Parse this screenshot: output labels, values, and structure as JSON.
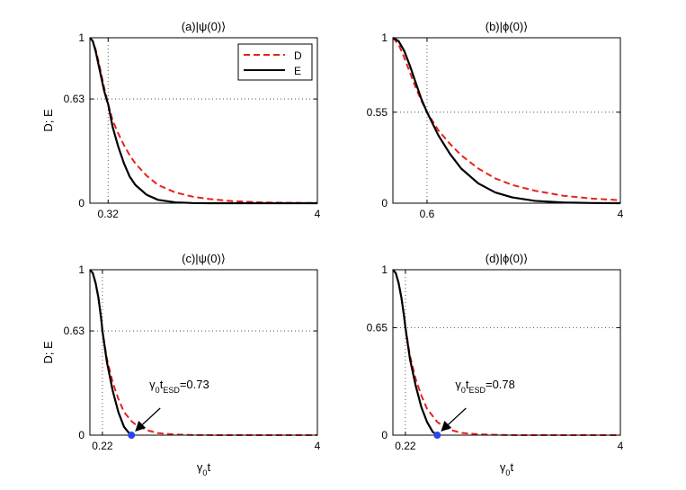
{
  "chart_data": [
    {
      "type": "line",
      "title": "(a)|ψ(0)⟩",
      "xlabel": "",
      "ylabel": "D; E",
      "xlim": [
        0,
        4
      ],
      "ylim": [
        0,
        1
      ],
      "xticks": [
        "0.32",
        "4"
      ],
      "yticks": [
        "0",
        "0.63",
        "1"
      ],
      "grid_x": 0.32,
      "grid_y": 0.63,
      "legend": {
        "position": "top-right",
        "entries": [
          "D",
          "E"
        ]
      },
      "series": [
        {
          "name": "D",
          "style": "dashed",
          "color": "#e8211a",
          "x": [
            0,
            0.05,
            0.1,
            0.15,
            0.2,
            0.25,
            0.3,
            0.32,
            0.4,
            0.5,
            0.6,
            0.7,
            0.8,
            1.0,
            1.2,
            1.5,
            1.8,
            2.1,
            2.5,
            3.0,
            3.5,
            4.0
          ],
          "y": [
            1.0,
            0.98,
            0.93,
            0.86,
            0.78,
            0.7,
            0.63,
            0.6,
            0.5,
            0.42,
            0.35,
            0.29,
            0.24,
            0.165,
            0.11,
            0.065,
            0.04,
            0.025,
            0.013,
            0.005,
            0.002,
            0.001
          ]
        },
        {
          "name": "E",
          "style": "solid",
          "color": "#000000",
          "x": [
            0,
            0.05,
            0.1,
            0.15,
            0.2,
            0.25,
            0.3,
            0.32,
            0.4,
            0.5,
            0.6,
            0.7,
            0.8,
            1.0,
            1.2,
            1.5,
            1.8,
            2.1,
            2.5,
            3.0,
            3.5,
            4.0
          ],
          "y": [
            1.0,
            0.98,
            0.92,
            0.84,
            0.76,
            0.68,
            0.62,
            0.6,
            0.46,
            0.34,
            0.24,
            0.16,
            0.11,
            0.05,
            0.02,
            0.005,
            0.001,
            0.0,
            0.0,
            0.0,
            0.0,
            0.0
          ]
        }
      ]
    },
    {
      "type": "line",
      "title": "(b)|ϕ(0)⟩",
      "xlabel": "",
      "ylabel": "",
      "xlim": [
        0,
        4
      ],
      "ylim": [
        0,
        1
      ],
      "xticks": [
        "0.6",
        "4"
      ],
      "yticks": [
        "0",
        "0.55",
        "1"
      ],
      "grid_x": 0.6,
      "grid_y": 0.55,
      "series": [
        {
          "name": "D",
          "style": "dashed",
          "color": "#e8211a",
          "x": [
            0,
            0.1,
            0.2,
            0.3,
            0.4,
            0.5,
            0.6,
            0.8,
            1.0,
            1.2,
            1.5,
            1.8,
            2.1,
            2.5,
            3.0,
            3.5,
            4.0
          ],
          "y": [
            1.0,
            0.96,
            0.88,
            0.79,
            0.7,
            0.62,
            0.55,
            0.44,
            0.36,
            0.29,
            0.21,
            0.15,
            0.11,
            0.075,
            0.045,
            0.028,
            0.018
          ]
        },
        {
          "name": "E",
          "style": "solid",
          "color": "#000000",
          "x": [
            0,
            0.1,
            0.2,
            0.3,
            0.4,
            0.5,
            0.6,
            0.8,
            1.0,
            1.2,
            1.5,
            1.8,
            2.1,
            2.5,
            3.0,
            3.5,
            4.0
          ],
          "y": [
            1.0,
            0.98,
            0.92,
            0.83,
            0.73,
            0.63,
            0.55,
            0.41,
            0.3,
            0.21,
            0.12,
            0.065,
            0.035,
            0.014,
            0.004,
            0.001,
            0.0
          ]
        }
      ]
    },
    {
      "type": "line",
      "title": "(c)|ψ(0)⟩",
      "xlabel": "γ0t",
      "ylabel": "D; E",
      "xlim": [
        0,
        4
      ],
      "ylim": [
        0,
        1
      ],
      "xticks": [
        "0.22",
        "4"
      ],
      "yticks": [
        "0",
        "0.63",
        "1"
      ],
      "grid_x": 0.22,
      "grid_y": 0.63,
      "esd_point": {
        "x": 0.73,
        "y": 0
      },
      "annotation": {
        "label": "γ0tESD",
        "value": "=0.73"
      },
      "series": [
        {
          "name": "D",
          "style": "dashed",
          "color": "#e8211a",
          "x": [
            0,
            0.05,
            0.1,
            0.15,
            0.2,
            0.22,
            0.3,
            0.4,
            0.5,
            0.6,
            0.73,
            0.8,
            1.0,
            1.2,
            1.5,
            1.8,
            2.2,
            3.0,
            4.0
          ],
          "y": [
            1.0,
            0.98,
            0.92,
            0.83,
            0.7,
            0.63,
            0.46,
            0.32,
            0.22,
            0.14,
            0.085,
            0.065,
            0.03,
            0.012,
            0.004,
            0.001,
            0.0,
            0.0,
            0.0
          ]
        },
        {
          "name": "E",
          "style": "solid",
          "color": "#000000",
          "x": [
            0,
            0.05,
            0.1,
            0.15,
            0.2,
            0.22,
            0.3,
            0.4,
            0.5,
            0.6,
            0.7,
            0.73
          ],
          "y": [
            1.0,
            0.98,
            0.92,
            0.83,
            0.7,
            0.63,
            0.44,
            0.27,
            0.14,
            0.05,
            0.008,
            0.0
          ]
        }
      ]
    },
    {
      "type": "line",
      "title": "(d)|ϕ(0)⟩",
      "xlabel": "γ0t",
      "ylabel": "",
      "xlim": [
        0,
        4
      ],
      "ylim": [
        0,
        1
      ],
      "xticks": [
        "0.22",
        "4"
      ],
      "yticks": [
        "0",
        "0.65",
        "1"
      ],
      "grid_x": 0.22,
      "grid_y": 0.65,
      "esd_point": {
        "x": 0.78,
        "y": 0
      },
      "annotation": {
        "label": "γ0tESD",
        "value": "=0.78"
      },
      "series": [
        {
          "name": "D",
          "style": "dashed",
          "color": "#e8211a",
          "x": [
            0,
            0.05,
            0.1,
            0.15,
            0.2,
            0.22,
            0.3,
            0.4,
            0.5,
            0.6,
            0.78,
            0.9,
            1.0,
            1.2,
            1.5,
            1.8,
            2.2,
            3.0,
            4.0
          ],
          "y": [
            1.0,
            0.98,
            0.92,
            0.83,
            0.71,
            0.65,
            0.48,
            0.34,
            0.24,
            0.16,
            0.08,
            0.05,
            0.033,
            0.014,
            0.005,
            0.002,
            0.0,
            0.0,
            0.0
          ]
        },
        {
          "name": "E",
          "style": "solid",
          "color": "#000000",
          "x": [
            0,
            0.05,
            0.1,
            0.15,
            0.2,
            0.22,
            0.3,
            0.4,
            0.5,
            0.6,
            0.7,
            0.78
          ],
          "y": [
            1.0,
            0.98,
            0.92,
            0.83,
            0.71,
            0.65,
            0.46,
            0.3,
            0.17,
            0.08,
            0.02,
            0.0
          ]
        }
      ]
    }
  ]
}
